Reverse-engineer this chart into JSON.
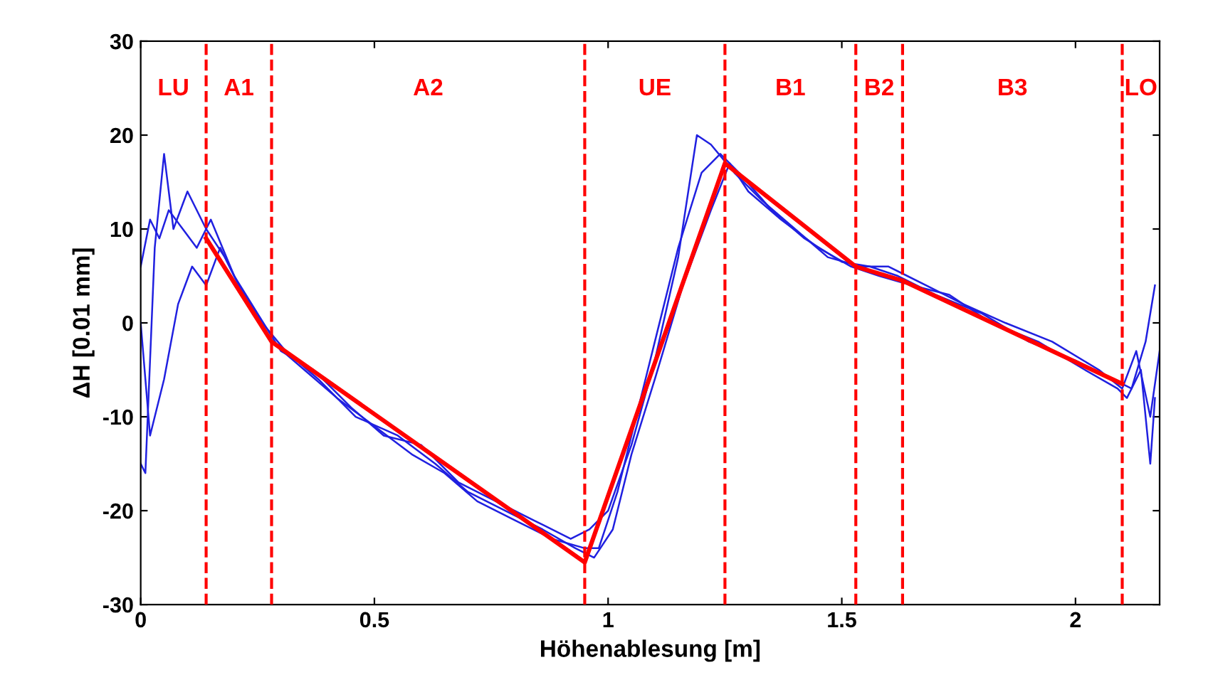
{
  "chart_data": {
    "type": "line",
    "xlabel": "Höhenablesung [m]",
    "ylabel": "ΔH [0.01 mm]",
    "xlim": [
      0,
      2.18
    ],
    "ylim": [
      -30,
      30
    ],
    "xticks": [
      0,
      0.5,
      1,
      1.5,
      2
    ],
    "yticks": [
      -30,
      -20,
      -10,
      0,
      10,
      20,
      30
    ],
    "grid": false,
    "legend": false,
    "marker": "none",
    "series": [
      {
        "color": "#2020e0",
        "x": [
          0,
          0.01,
          0.03,
          0.05,
          0.07,
          0.1,
          0.14,
          0.18,
          0.22,
          0.28,
          0.35,
          0.42,
          0.5,
          0.58,
          0.65,
          0.72,
          0.8,
          0.88,
          0.95,
          0.98,
          1.02,
          1.06,
          1.1,
          1.15,
          1.2,
          1.24,
          1.28,
          1.35,
          1.42,
          1.5,
          1.56,
          1.62,
          1.7,
          1.8,
          1.9,
          2.0,
          2.08,
          2.12,
          2.15,
          2.17
        ],
        "values": [
          -15,
          -16,
          8,
          18,
          10,
          14,
          10,
          7,
          3,
          -2,
          -5,
          -8,
          -11,
          -14,
          -16,
          -19,
          -21,
          -23,
          -24,
          -24,
          -18,
          -10,
          -2,
          8,
          16,
          18,
          16,
          12,
          9,
          6.5,
          6,
          5,
          3,
          1,
          -2,
          -4,
          -6,
          -7,
          -2,
          4
        ]
      },
      {
        "color": "#2020e0",
        "x": [
          0,
          0.02,
          0.04,
          0.06,
          0.09,
          0.12,
          0.15,
          0.2,
          0.25,
          0.3,
          0.37,
          0.45,
          0.52,
          0.6,
          0.68,
          0.76,
          0.84,
          0.92,
          0.96,
          1.0,
          1.05,
          1.1,
          1.15,
          1.19,
          1.22,
          1.27,
          1.33,
          1.4,
          1.47,
          1.54,
          1.6,
          1.68,
          1.76,
          1.85,
          1.95,
          2.05,
          2.1,
          2.13,
          2.16,
          2.18
        ],
        "values": [
          6,
          11,
          9,
          12,
          10,
          8,
          11,
          5,
          1,
          -3,
          -5,
          -9,
          -12,
          -13,
          -17,
          -19,
          -21,
          -23,
          -22,
          -20,
          -13,
          -4,
          7,
          20,
          19,
          16,
          13,
          10,
          7,
          6,
          6,
          4,
          2,
          0,
          -2,
          -5,
          -7,
          -3,
          -10,
          -3
        ]
      },
      {
        "color": "#2020e0",
        "x": [
          0,
          0.02,
          0.05,
          0.08,
          0.11,
          0.14,
          0.17,
          0.21,
          0.26,
          0.31,
          0.38,
          0.46,
          0.55,
          0.63,
          0.7,
          0.78,
          0.86,
          0.93,
          0.97,
          1.01,
          1.05,
          1.1,
          1.16,
          1.22,
          1.26,
          1.3,
          1.37,
          1.45,
          1.52,
          1.58,
          1.65,
          1.73,
          1.82,
          1.92,
          2.02,
          2.09,
          2.11,
          2.14,
          2.16,
          2.17
        ],
        "values": [
          0,
          -12,
          -6,
          2,
          6,
          4,
          8,
          4,
          0,
          -3,
          -6,
          -10,
          -12,
          -15,
          -18,
          -20,
          -22,
          -24,
          -25,
          -22,
          -14,
          -6,
          4,
          12,
          17,
          14,
          11,
          8,
          6,
          5,
          4,
          3,
          0,
          -2,
          -5,
          -7,
          -8,
          -5,
          -15,
          -8
        ]
      },
      {
        "color": "#ff0000",
        "x": [
          0.14,
          0.28,
          0.95,
          1.25,
          1.53,
          1.63,
          2.1
        ],
        "values": [
          9,
          -2,
          -25.5,
          17,
          6,
          4.5,
          -6.5
        ]
      }
    ],
    "ref_lines": [
      {
        "axis": "x",
        "value": 0.14,
        "color": "#ff0000",
        "line_style": "dashed"
      },
      {
        "axis": "x",
        "value": 0.28,
        "color": "#ff0000",
        "line_style": "dashed"
      },
      {
        "axis": "x",
        "value": 0.95,
        "color": "#ff0000",
        "line_style": "dashed"
      },
      {
        "axis": "x",
        "value": 1.25,
        "color": "#ff0000",
        "line_style": "dashed"
      },
      {
        "axis": "x",
        "value": 1.53,
        "color": "#ff0000",
        "line_style": "dashed"
      },
      {
        "axis": "x",
        "value": 1.63,
        "color": "#ff0000",
        "line_style": "dashed"
      },
      {
        "axis": "x",
        "value": 2.1,
        "color": "#ff0000",
        "line_style": "dashed"
      }
    ],
    "annotations": [
      "LU",
      "A1",
      "A2",
      "UE",
      "B1",
      "B2",
      "B3",
      "LO"
    ]
  }
}
